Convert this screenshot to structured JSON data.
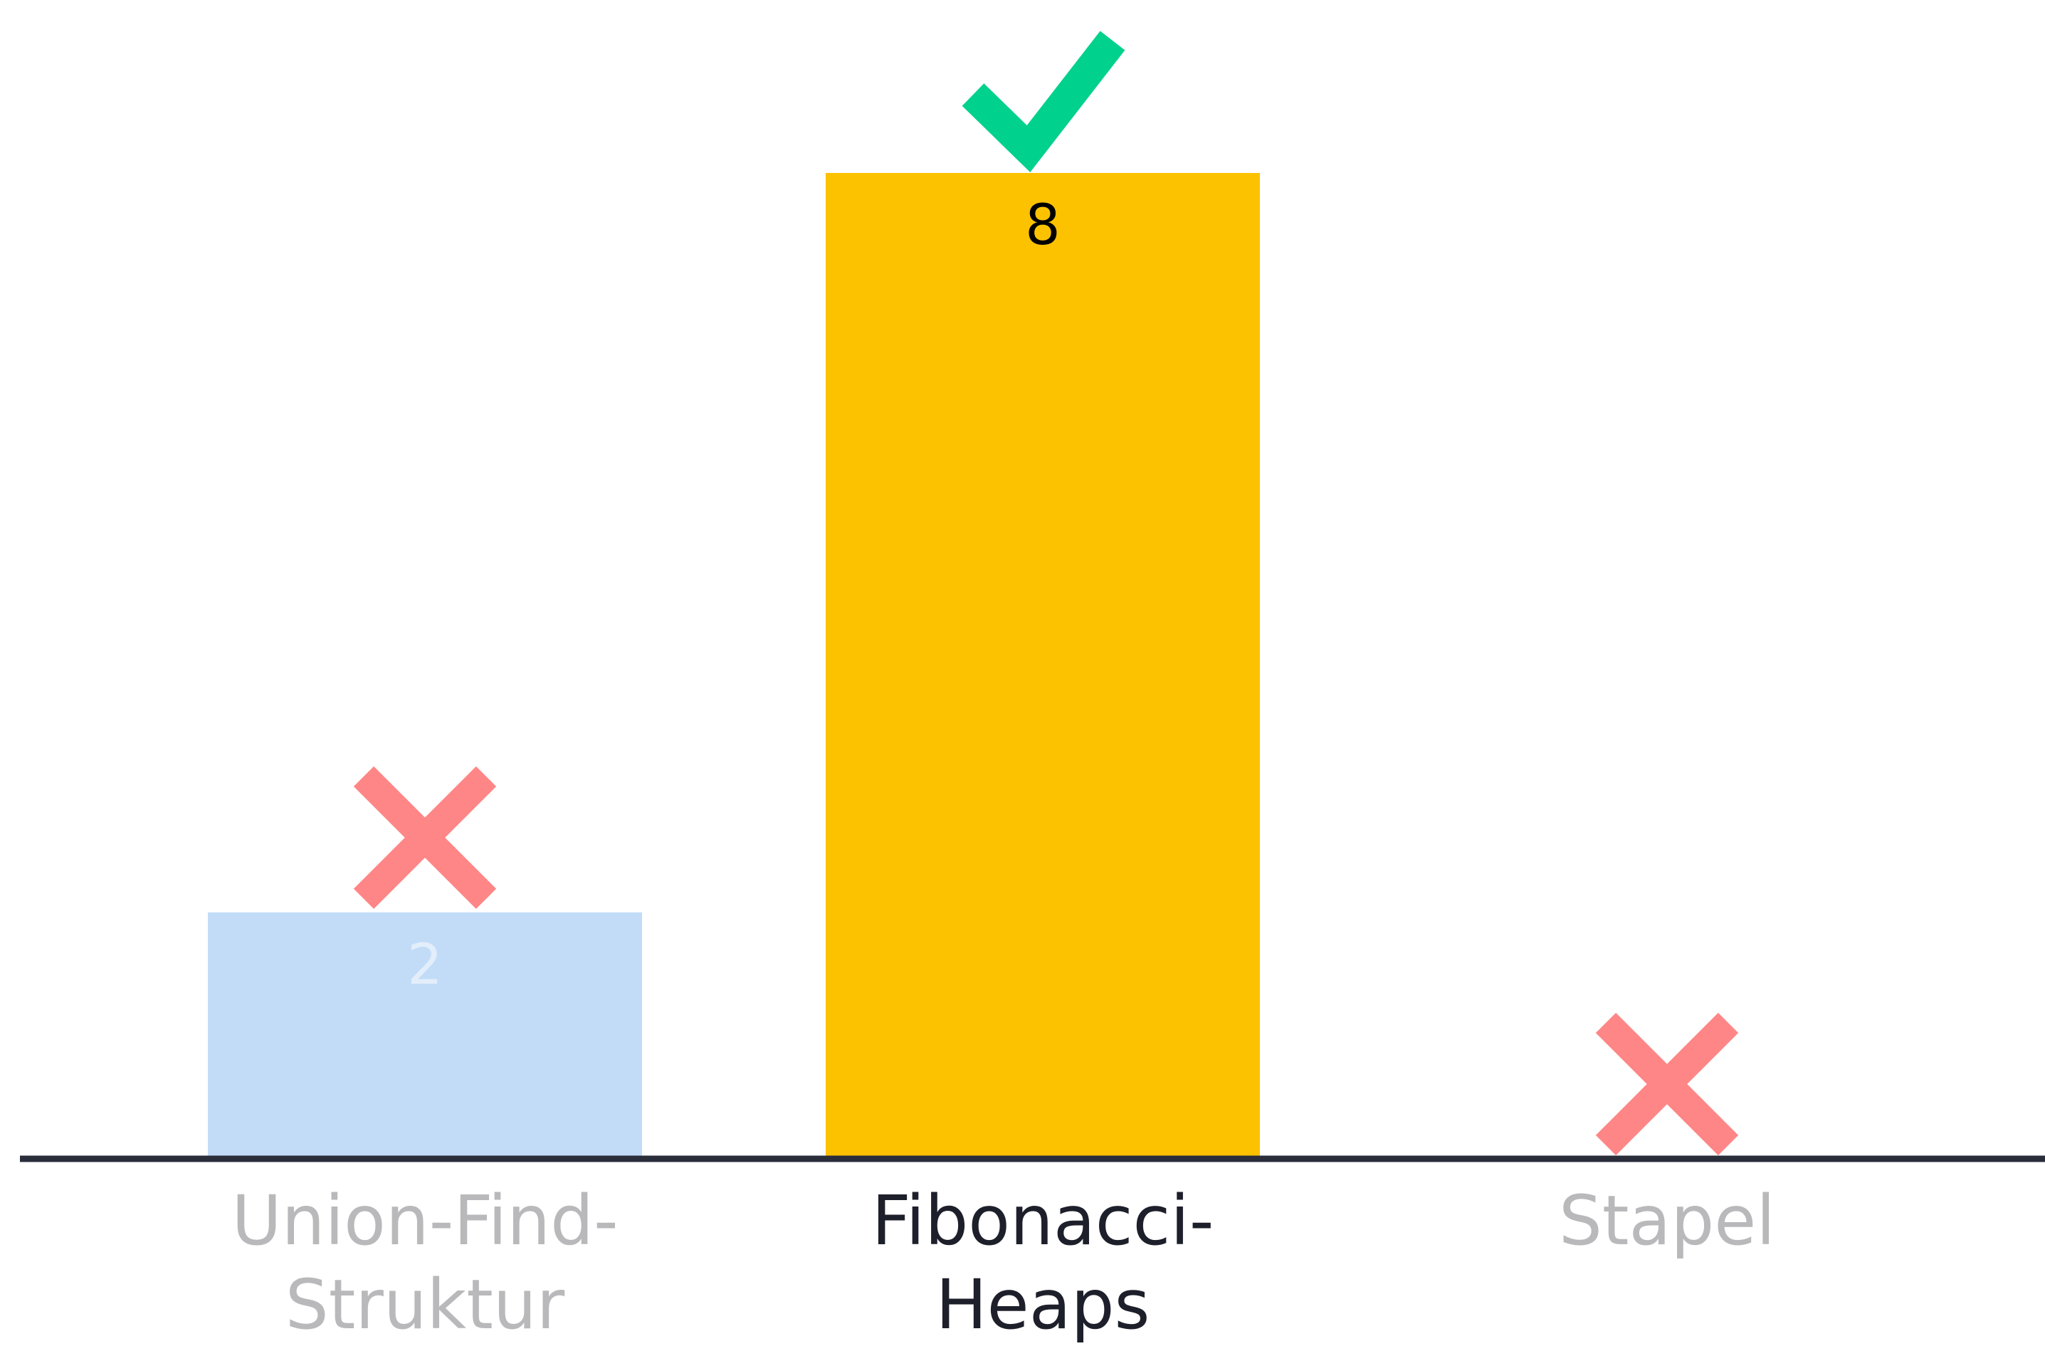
{
  "chart_data": {
    "type": "bar",
    "title": "",
    "xlabel": "",
    "ylabel": "",
    "ylim": [
      0,
      8
    ],
    "grid": false,
    "legend": "none",
    "categories": [
      "Union-Find-\nStruktur",
      "Fibonacci-\nHeaps",
      "Stapel"
    ],
    "values": [
      2,
      8,
      0
    ],
    "correct": [
      false,
      true,
      false
    ],
    "highlighted": [
      false,
      true,
      false
    ],
    "colors": {
      "bar_default": "#c2dcf8",
      "bar_highlight": "#fcc200",
      "value_label_default": "#e3eefb",
      "value_label_highlight": "#000000",
      "label_default": "#b9b9bb",
      "label_highlight": "#1d1f2a",
      "axis": "#2a2d3a",
      "check": "#00d18c",
      "cross": "#ff8686"
    },
    "marks": {
      "correct_icon": "checkmark-icon",
      "wrong_icon": "cross-icon"
    }
  }
}
